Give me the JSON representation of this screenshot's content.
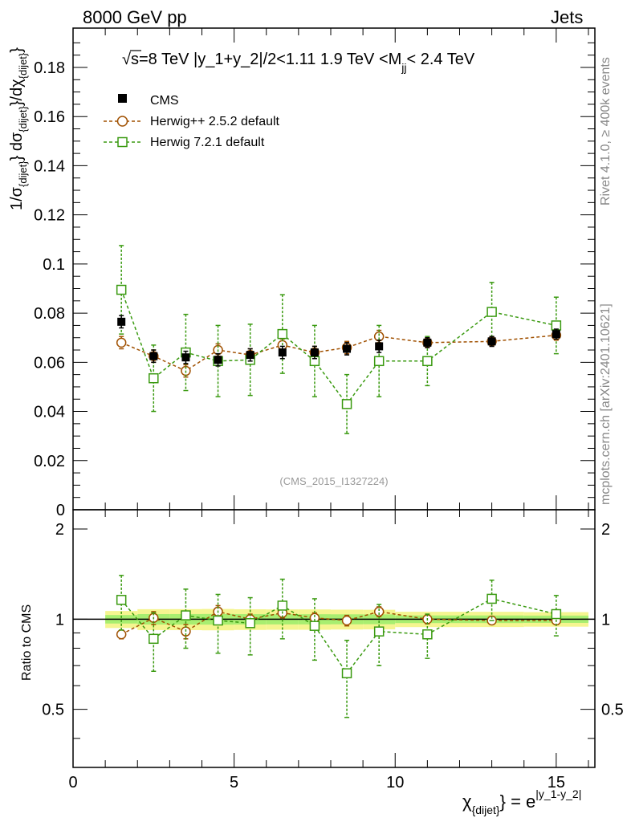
{
  "header": {
    "left": "8000 GeV pp",
    "right": "Jets"
  },
  "side_labels": {
    "rivet": "Rivet 4.1.0, ≥ 400k events",
    "mcplots": "mcplots.cern.ch [arXiv:2401.10621]"
  },
  "chart_data": {
    "type": "scatter",
    "title": "√s=8 TeV |y_1+y_2|/2<1.11 1.9 TeV <M_jj< 2.4 TeV",
    "title_parts": {
      "sqrt": "√",
      "main": "s=8 TeV |y_1+y_2|/2<1.11 1.9 TeV <M",
      "sub": "jj",
      "tail": "< 2.4 TeV"
    },
    "analysis_id": "(CMS_2015_I1327224)",
    "xlabel": {
      "chi": "χ",
      "sub": "{dijet}",
      "eq": "} = e",
      "sup": "|y_1-y_2|"
    },
    "ylabel": {
      "p1": "1/σ",
      "s1": "{dijet}",
      "p2": "} dσ",
      "s2": "{dijet}",
      "p3": "}/dχ",
      "s3": "{dijet}",
      "p4": "}"
    },
    "ratio_ylabel": "Ratio to CMS",
    "xlim": [
      0,
      16.2
    ],
    "ylim": [
      0,
      0.196
    ],
    "ratio_ylim": [
      0.32,
      2.32
    ],
    "x_ticks": [
      "0",
      "5",
      "10",
      "15"
    ],
    "y_ticks": [
      "0",
      "0.02",
      "0.04",
      "0.06",
      "0.08",
      "0.1",
      "0.12",
      "0.14",
      "0.16",
      "0.18"
    ],
    "ratio_ticks": [
      "0.5",
      "1",
      "2"
    ],
    "x": [
      1.5,
      2.5,
      3.5,
      4.5,
      5.5,
      6.5,
      7.5,
      8.5,
      9.5,
      11.0,
      13.0,
      15.0
    ],
    "x_bins": [
      [
        1,
        2
      ],
      [
        2,
        3
      ],
      [
        3,
        4
      ],
      [
        4,
        5
      ],
      [
        5,
        6
      ],
      [
        6,
        7
      ],
      [
        7,
        8
      ],
      [
        8,
        9
      ],
      [
        9,
        10
      ],
      [
        10,
        12
      ],
      [
        12,
        14
      ],
      [
        14,
        16
      ]
    ],
    "series": [
      {
        "name": "CMS",
        "color": "#000000",
        "marker": "filled-square",
        "values": [
          0.0765,
          0.0625,
          0.062,
          0.061,
          0.063,
          0.064,
          0.064,
          0.0655,
          0.0665,
          0.068,
          0.0685,
          0.0715
        ],
        "err": [
          0.0025,
          0.0025,
          0.0025,
          0.0025,
          0.0025,
          0.0025,
          0.0025,
          0.0025,
          0.0025,
          0.002,
          0.002,
          0.002
        ],
        "ratio": [
          1,
          1,
          1,
          1,
          1,
          1,
          1,
          1,
          1,
          1,
          1,
          1
        ]
      },
      {
        "name": "Herwig++ 2.5.2 default",
        "color": "#a05000",
        "marker": "open-circle",
        "values": [
          0.068,
          0.0625,
          0.0565,
          0.065,
          0.063,
          0.067,
          0.064,
          0.066,
          0.0705,
          0.068,
          0.0685,
          0.071
        ],
        "err": [
          0.0025,
          0.0025,
          0.0025,
          0.0025,
          0.0025,
          0.0025,
          0.0025,
          0.0025,
          0.0025,
          0.002,
          0.002,
          0.002
        ],
        "ratio": [
          0.89,
          1.01,
          0.91,
          1.06,
          1.0,
          1.05,
          1.01,
          0.99,
          1.06,
          1.0,
          0.99,
          0.99
        ],
        "ratio_err": [
          0.03,
          0.05,
          0.05,
          0.05,
          0.04,
          0.04,
          0.04,
          0.04,
          0.04,
          0.035,
          0.03,
          0.03
        ]
      },
      {
        "name": "Herwig 7.2.1 default",
        "color": "#3a9a10",
        "marker": "open-square",
        "values": [
          0.0895,
          0.0535,
          0.064,
          0.0605,
          0.061,
          0.0715,
          0.0605,
          0.043,
          0.0605,
          0.0605,
          0.0805,
          0.075
        ],
        "err": [
          0.018,
          0.0135,
          0.0155,
          0.0145,
          0.0145,
          0.016,
          0.0145,
          0.012,
          0.0145,
          0.01,
          0.012,
          0.0115
        ],
        "ratio": [
          1.16,
          0.86,
          1.03,
          0.99,
          0.97,
          1.11,
          0.95,
          0.66,
          0.91,
          0.89,
          1.17,
          1.04
        ],
        "ratio_err": [
          0.24,
          0.19,
          0.23,
          0.22,
          0.21,
          0.25,
          0.22,
          0.19,
          0.21,
          0.15,
          0.18,
          0.16
        ]
      }
    ]
  }
}
